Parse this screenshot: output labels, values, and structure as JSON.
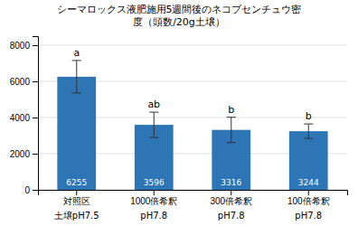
{
  "chart_data": {
    "type": "bar",
    "title": "シーマロックス液肥施用5週間後のネコブセンチュウ密",
    "subtitle": "度（頭数/20g土壌）",
    "categories": [
      "対照区",
      "1000倍希釈",
      "300倍希釈",
      "100倍希釈"
    ],
    "sublabels": [
      "土壌pH7.5",
      "pH7.8",
      "pH7.8",
      "pH7.8"
    ],
    "values": [
      6255,
      3596,
      3316,
      3244
    ],
    "errors": [
      900,
      700,
      700,
      400
    ],
    "sig_labels": [
      "a",
      "ab",
      "b",
      "b"
    ],
    "color": "#2E75B6",
    "data_labels": true,
    "ylim": [
      0,
      8500
    ],
    "yticks": [
      0,
      2000,
      4000,
      6000,
      8000
    ],
    "grid": true
  }
}
